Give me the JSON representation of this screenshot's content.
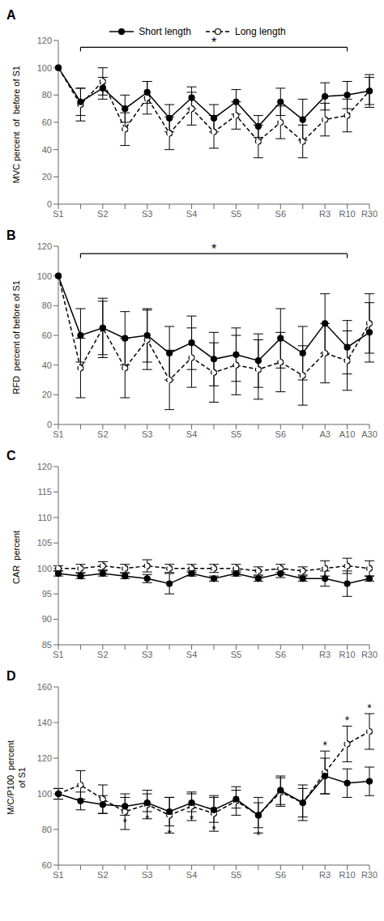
{
  "chart_data": [
    {
      "type": "line",
      "title": "A",
      "y_label": "MVC percent  of  before of S1",
      "categories": [
        "S1",
        null,
        "S2",
        null,
        "S3",
        null,
        "S4",
        null,
        "S5",
        null,
        "S6",
        null,
        "R3",
        "R10",
        "R30"
      ],
      "ylim": [
        0,
        120
      ],
      "yticks": [
        0,
        20,
        40,
        60,
        80,
        100,
        120
      ],
      "legend": "top",
      "series": [
        {
          "name": "Short length",
          "color": "#000000",
          "marker": "filled",
          "line_style": "solid",
          "values": [
            100,
            75,
            85,
            70,
            82,
            63,
            78,
            63,
            75,
            57,
            75,
            62,
            79,
            80,
            83
          ],
          "errors": [
            0,
            10,
            8,
            10,
            8,
            10,
            8,
            10,
            9,
            8,
            10,
            15,
            10,
            10,
            10
          ]
        },
        {
          "name": "Long length",
          "color": "#000000",
          "marker": "open",
          "line_style": "dashed",
          "values": [
            100,
            73,
            90,
            55,
            78,
            52,
            70,
            53,
            65,
            46,
            60,
            46,
            62,
            65,
            83
          ],
          "errors": [
            0,
            12,
            10,
            12,
            12,
            12,
            12,
            12,
            10,
            12,
            12,
            12,
            12,
            12,
            12
          ]
        }
      ],
      "annotations": [
        {
          "type": "bracket",
          "text": "*",
          "from": 1,
          "to": 13,
          "y": 115
        }
      ]
    },
    {
      "type": "line",
      "title": "B",
      "y_label": "RFD  percent of before of S1",
      "categories": [
        "S1",
        null,
        "S2",
        null,
        "S3",
        null,
        "S4",
        null,
        "S5",
        null,
        "S6",
        null,
        "A3",
        "A10",
        "A30"
      ],
      "ylim": [
        0,
        120
      ],
      "yticks": [
        0,
        20,
        40,
        60,
        80,
        100,
        120
      ],
      "series": [
        {
          "name": "Short length",
          "color": "#000000",
          "marker": "filled",
          "line_style": "solid",
          "values": [
            100,
            60,
            65,
            58,
            60,
            48,
            55,
            44,
            47,
            43,
            58,
            48,
            68,
            52,
            62
          ],
          "errors": [
            0,
            18,
            18,
            18,
            18,
            18,
            18,
            18,
            18,
            18,
            20,
            18,
            20,
            18,
            20
          ]
        },
        {
          "name": "Long length",
          "color": "#000000",
          "marker": "open",
          "line_style": "dashed",
          "values": [
            100,
            38,
            65,
            38,
            57,
            30,
            45,
            35,
            40,
            37,
            42,
            33,
            48,
            43,
            68
          ],
          "errors": [
            0,
            20,
            20,
            20,
            20,
            20,
            20,
            20,
            20,
            20,
            20,
            20,
            20,
            20,
            20
          ]
        }
      ],
      "annotations": [
        {
          "type": "bracket",
          "text": "*",
          "from": 1,
          "to": 13,
          "y": 115
        }
      ]
    },
    {
      "type": "line",
      "title": "C",
      "y_label": "CAR  percent",
      "categories": [
        "S1",
        null,
        "S2",
        null,
        "S3",
        null,
        "S4",
        null,
        "S5",
        null,
        "S6",
        null,
        "R3",
        "R10",
        "R30"
      ],
      "ylim": [
        85,
        120
      ],
      "yticks": [
        85,
        90,
        95,
        100,
        105,
        110,
        115,
        120
      ],
      "series": [
        {
          "name": "Short length",
          "color": "#000000",
          "marker": "filled",
          "line_style": "solid",
          "values": [
            99,
            98.5,
            99,
            98.5,
            98,
            97,
            99,
            98,
            99,
            98,
            99,
            98,
            98,
            97,
            98
          ],
          "errors": [
            0.5,
            0.5,
            0.5,
            0.5,
            0.8,
            2.0,
            0.5,
            0.5,
            0.5,
            0.5,
            0.8,
            0.5,
            1.5,
            2.5,
            0.5
          ]
        },
        {
          "name": "Long length",
          "color": "#000000",
          "marker": "open",
          "line_style": "dashed",
          "values": [
            100,
            100,
            100.5,
            100,
            100.5,
            100,
            100,
            100,
            100,
            99.5,
            100,
            99.5,
            100,
            100.5,
            100
          ],
          "errors": [
            0.5,
            0.8,
            0.8,
            0.8,
            1.2,
            0.8,
            0.8,
            0.8,
            0.8,
            0.8,
            0.8,
            0.8,
            1.5,
            1.5,
            1.5
          ]
        }
      ]
    },
    {
      "type": "line",
      "title": "D",
      "y_label": "M/C/P100  percent\nof S1",
      "categories": [
        "S1",
        null,
        "S2",
        null,
        "S3",
        null,
        "S4",
        null,
        "S5",
        null,
        "S6",
        null,
        "R3",
        "R10",
        "R30"
      ],
      "ylim": [
        60,
        160
      ],
      "yticks": [
        60,
        80,
        100,
        120,
        140,
        160
      ],
      "series": [
        {
          "name": "Short length",
          "color": "#000000",
          "marker": "filled",
          "line_style": "solid",
          "values": [
            100,
            96,
            94,
            93,
            95,
            90,
            95,
            91,
            97,
            88,
            102,
            95,
            110,
            106,
            107
          ],
          "errors": [
            3,
            5,
            5,
            5,
            5,
            8,
            5,
            7,
            5,
            7,
            8,
            8,
            10,
            8,
            8
          ]
        },
        {
          "name": "Long length",
          "color": "#000000",
          "marker": "open",
          "line_style": "dashed",
          "values": [
            100,
            105,
            97,
            90,
            94,
            88,
            93,
            89,
            96,
            88,
            101,
            95,
            112,
            128,
            135
          ],
          "errors": [
            3,
            8,
            8,
            10,
            8,
            10,
            8,
            10,
            8,
            10,
            8,
            10,
            12,
            10,
            10
          ]
        }
      ],
      "annotations": [
        {
          "text": "*",
          "series": "Short length",
          "positions": [
            3,
            4,
            5,
            6,
            7,
            9
          ],
          "side": "below"
        },
        {
          "text": "*",
          "series": "Long length",
          "positions": [
            12,
            13,
            14
          ],
          "side": "above"
        }
      ]
    }
  ]
}
